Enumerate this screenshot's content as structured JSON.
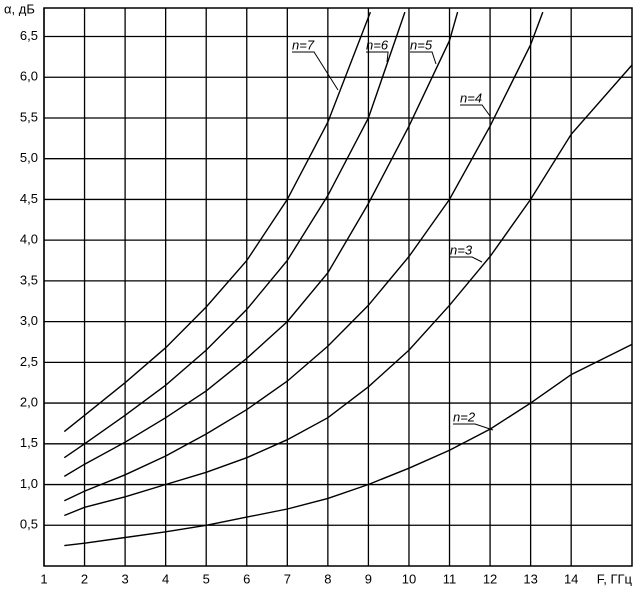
{
  "chart_data": {
    "type": "line",
    "y_label": "α, дБ",
    "x_label": "F, ГГц",
    "xlim": [
      1,
      15.5
    ],
    "ylim": [
      0,
      6.85
    ],
    "xticks": [
      1,
      2,
      3,
      4,
      5,
      6,
      7,
      8,
      9,
      10,
      11,
      12,
      13,
      14
    ],
    "yticks": [
      {
        "value": 0.5,
        "label": "0,5"
      },
      {
        "value": 1.0,
        "label": "1,0"
      },
      {
        "value": 1.5,
        "label": "1,5"
      },
      {
        "value": 2.0,
        "label": "2,0"
      },
      {
        "value": 2.5,
        "label": "2,5"
      },
      {
        "value": 3.0,
        "label": "3,0"
      },
      {
        "value": 3.5,
        "label": "3,5"
      },
      {
        "value": 4.0,
        "label": "4,0"
      },
      {
        "value": 4.5,
        "label": "4,5"
      },
      {
        "value": 5.0,
        "label": "5,0"
      },
      {
        "value": 5.5,
        "label": "5,5"
      },
      {
        "value": 6.0,
        "label": "6,0"
      },
      {
        "value": 6.5,
        "label": "6,5"
      }
    ],
    "grid": true,
    "series": [
      {
        "name": "n=2",
        "color": "#000000",
        "x": [
          1.5,
          2,
          3,
          4,
          5,
          6,
          7,
          8,
          9,
          10,
          11,
          12,
          13,
          14,
          15.5
        ],
        "values": [
          0.25,
          0.28,
          0.35,
          0.42,
          0.5,
          0.6,
          0.7,
          0.83,
          1.0,
          1.2,
          1.42,
          1.68,
          2.0,
          2.35,
          2.72
        ]
      },
      {
        "name": "n=3",
        "color": "#000000",
        "x": [
          1.5,
          2,
          3,
          4,
          5,
          6,
          7,
          8,
          9,
          10,
          11,
          12,
          13,
          14,
          15.5
        ],
        "values": [
          0.62,
          0.72,
          0.85,
          1.0,
          1.15,
          1.33,
          1.55,
          1.82,
          2.2,
          2.65,
          3.2,
          3.8,
          4.5,
          5.3,
          6.15
        ]
      },
      {
        "name": "n=4",
        "color": "#000000",
        "x": [
          1.5,
          2,
          3,
          4,
          5,
          6,
          7,
          8,
          9,
          10,
          11,
          12,
          13,
          13.3
        ],
        "values": [
          0.8,
          0.92,
          1.12,
          1.35,
          1.62,
          1.92,
          2.27,
          2.7,
          3.2,
          3.8,
          4.5,
          5.4,
          6.4,
          6.8
        ]
      },
      {
        "name": "n=5",
        "color": "#000000",
        "x": [
          1.5,
          2,
          3,
          4,
          5,
          6,
          7,
          8,
          9,
          10,
          11,
          11.2
        ],
        "values": [
          1.1,
          1.25,
          1.52,
          1.82,
          2.15,
          2.55,
          3.0,
          3.6,
          4.45,
          5.4,
          6.45,
          6.8
        ]
      },
      {
        "name": "n=6",
        "color": "#000000",
        "x": [
          1.5,
          2,
          3,
          4,
          5,
          6,
          7,
          8,
          9,
          9.9
        ],
        "values": [
          1.33,
          1.5,
          1.85,
          2.22,
          2.65,
          3.15,
          3.75,
          4.55,
          5.5,
          6.8
        ]
      },
      {
        "name": "n=7",
        "color": "#000000",
        "x": [
          1.5,
          2,
          3,
          4,
          5,
          6,
          7,
          8,
          9.05
        ],
        "values": [
          1.65,
          1.85,
          2.25,
          2.68,
          3.18,
          3.75,
          4.5,
          5.45,
          6.8
        ]
      }
    ]
  }
}
